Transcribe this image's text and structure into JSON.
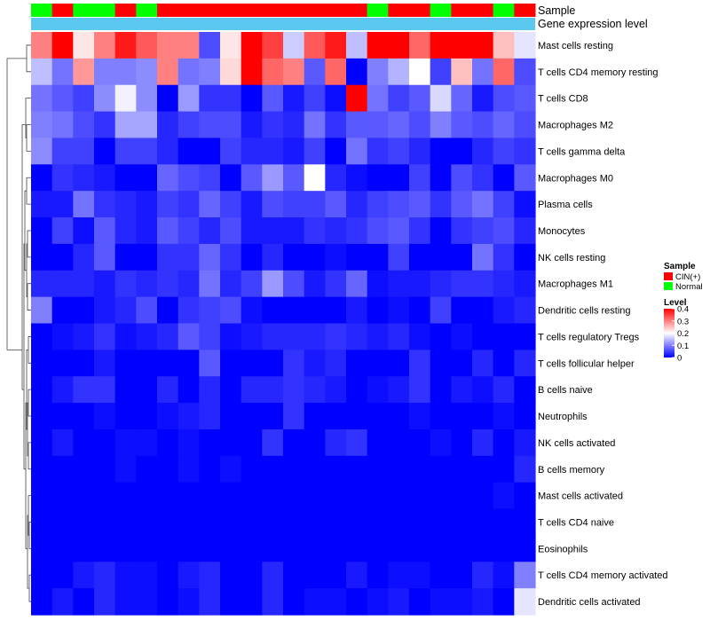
{
  "chart_data": {
    "type": "heatmap",
    "title": "",
    "annotation_tracks": [
      "Sample",
      "Gene expression level"
    ],
    "rows": [
      "Mast cells resting",
      "T cells CD4 memory resting",
      "T cells CD8",
      "Macrophages M2",
      "T cells gamma delta",
      "Macrophages M0",
      "Plasma cells",
      "Monocytes",
      "NK cells resting",
      "Macrophages M1",
      "Dendritic cells resting",
      "T cells regulatory  Tregs",
      "T cells follicular helper",
      "B cells naive",
      "Neutrophils",
      "NK cells activated",
      "B cells memory",
      "Mast cells activated",
      "T cells CD4 naive",
      "Eosinophils",
      "T cells CD4 memory activated",
      "Dendritic cells activated"
    ],
    "samples": [
      "Normal",
      "CIN(+)",
      "Normal",
      "Normal",
      "CIN(+)",
      "Normal",
      "CIN(+)",
      "CIN(+)",
      "CIN(+)",
      "CIN(+)",
      "CIN(+)",
      "CIN(+)",
      "CIN(+)",
      "CIN(+)",
      "CIN(+)",
      "CIN(+)",
      "Normal",
      "CIN(+)",
      "CIN(+)",
      "Normal",
      "CIN(+)",
      "CIN(+)",
      "Normal",
      "CIN(+)"
    ],
    "values": [
      [
        0.3,
        0.4,
        0.22,
        0.3,
        0.38,
        0.33,
        0.3,
        0.3,
        0.06,
        0.22,
        0.4,
        0.35,
        0.16,
        0.33,
        0.38,
        0.15,
        0.4,
        0.4,
        0.32,
        0.4,
        0.4,
        0.4,
        0.25,
        0.18
      ],
      [
        0.15,
        0.09,
        0.28,
        0.1,
        0.1,
        0.11,
        0.3,
        0.09,
        0.1,
        0.23,
        0.4,
        0.32,
        0.3,
        0.07,
        0.32,
        0.0,
        0.1,
        0.14,
        0.2,
        0.05,
        0.25,
        0.09,
        0.32,
        0.06
      ],
      [
        0.09,
        0.07,
        0.05,
        0.11,
        0.19,
        0.11,
        0.0,
        0.12,
        0.04,
        0.04,
        0.0,
        0.07,
        0.02,
        0.05,
        0.01,
        0.4,
        0.09,
        0.05,
        0.07,
        0.17,
        0.08,
        0.02,
        0.06,
        0.07
      ],
      [
        0.1,
        0.09,
        0.06,
        0.04,
        0.13,
        0.13,
        0.03,
        0.05,
        0.06,
        0.06,
        0.02,
        0.04,
        0.03,
        0.09,
        0.04,
        0.07,
        0.07,
        0.08,
        0.06,
        0.1,
        0.07,
        0.06,
        0.08,
        0.06
      ],
      [
        0.11,
        0.05,
        0.05,
        0.0,
        0.05,
        0.05,
        0.03,
        0.0,
        0.0,
        0.05,
        0.03,
        0.03,
        0.02,
        0.05,
        0.0,
        0.09,
        0.04,
        0.05,
        0.03,
        0.0,
        0.0,
        0.03,
        0.05,
        0.04
      ],
      [
        0.0,
        0.04,
        0.03,
        0.02,
        0.0,
        0.0,
        0.08,
        0.06,
        0.05,
        0.0,
        0.07,
        0.12,
        0.07,
        0.2,
        0.03,
        0.01,
        0.0,
        0.0,
        0.05,
        0.0,
        0.06,
        0.04,
        0.0,
        0.07
      ],
      [
        0.02,
        0.02,
        0.09,
        0.04,
        0.03,
        0.02,
        0.05,
        0.04,
        0.08,
        0.05,
        0.02,
        0.06,
        0.05,
        0.05,
        0.07,
        0.03,
        0.05,
        0.06,
        0.07,
        0.04,
        0.07,
        0.09,
        0.05,
        0.01
      ],
      [
        0.0,
        0.05,
        0.01,
        0.07,
        0.03,
        0.02,
        0.07,
        0.05,
        0.03,
        0.06,
        0.02,
        0.02,
        0.02,
        0.04,
        0.03,
        0.04,
        0.06,
        0.07,
        0.04,
        0.0,
        0.04,
        0.05,
        0.06,
        0.03
      ],
      [
        0.0,
        0.0,
        0.03,
        0.07,
        0.0,
        0.0,
        0.04,
        0.04,
        0.08,
        0.04,
        0.0,
        0.03,
        0.0,
        0.0,
        0.01,
        0.0,
        0.0,
        0.05,
        0.0,
        0.0,
        0.0,
        0.09,
        0.04,
        0.0
      ],
      [
        0.03,
        0.03,
        0.03,
        0.02,
        0.04,
        0.03,
        0.04,
        0.03,
        0.09,
        0.03,
        0.05,
        0.12,
        0.06,
        0.02,
        0.04,
        0.08,
        0.01,
        0.02,
        0.02,
        0.03,
        0.04,
        0.04,
        0.03,
        0.02
      ],
      [
        0.1,
        0.0,
        0.0,
        0.02,
        0.03,
        0.06,
        0.0,
        0.04,
        0.05,
        0.06,
        0.01,
        0.0,
        0.0,
        0.0,
        0.0,
        0.02,
        0.0,
        0.01,
        0.0,
        0.05,
        0.0,
        0.0,
        0.02,
        0.03
      ],
      [
        0.0,
        0.01,
        0.02,
        0.04,
        0.01,
        0.02,
        0.03,
        0.07,
        0.05,
        0.01,
        0.02,
        0.03,
        0.03,
        0.03,
        0.04,
        0.03,
        0.02,
        0.03,
        0.01,
        0.0,
        0.01,
        0.0,
        0.0,
        0.0
      ],
      [
        0.0,
        0.0,
        0.0,
        0.02,
        0.0,
        0.0,
        0.0,
        0.0,
        0.07,
        0.0,
        0.0,
        0.0,
        0.04,
        0.02,
        0.03,
        0.0,
        0.0,
        0.0,
        0.04,
        0.0,
        0.0,
        0.03,
        0.0,
        0.03
      ],
      [
        0.0,
        0.02,
        0.04,
        0.04,
        0.0,
        0.0,
        0.03,
        0.0,
        0.03,
        0.0,
        0.03,
        0.03,
        0.04,
        0.03,
        0.02,
        0.0,
        0.01,
        0.02,
        0.04,
        0.0,
        0.02,
        0.01,
        0.03,
        0.0
      ],
      [
        0.0,
        0.0,
        0.0,
        0.01,
        0.0,
        0.0,
        0.01,
        0.02,
        0.03,
        0.0,
        0.0,
        0.0,
        0.04,
        0.0,
        0.0,
        0.0,
        0.0,
        0.0,
        0.01,
        0.0,
        0.0,
        0.0,
        0.01,
        0.0
      ],
      [
        0.0,
        0.02,
        0.0,
        0.0,
        0.01,
        0.01,
        0.0,
        0.01,
        0.0,
        0.0,
        0.0,
        0.04,
        0.0,
        0.0,
        0.03,
        0.04,
        0.0,
        0.0,
        0.0,
        0.01,
        0.0,
        0.03,
        0.0,
        0.02
      ],
      [
        0.0,
        0.0,
        0.0,
        0.0,
        0.01,
        0.0,
        0.0,
        0.01,
        0.0,
        0.01,
        0.0,
        0.0,
        0.0,
        0.0,
        0.0,
        0.0,
        0.0,
        0.0,
        0.0,
        0.0,
        0.0,
        0.0,
        0.0,
        0.03
      ],
      [
        0.0,
        0.0,
        0.0,
        0.0,
        0.0,
        0.0,
        0.0,
        0.0,
        0.0,
        0.0,
        0.0,
        0.0,
        0.0,
        0.0,
        0.0,
        0.0,
        0.0,
        0.0,
        0.0,
        0.0,
        0.0,
        0.0,
        0.01,
        0.0
      ],
      [
        0.0,
        0.0,
        0.0,
        0.0,
        0.0,
        0.0,
        0.0,
        0.0,
        0.0,
        0.0,
        0.0,
        0.0,
        0.0,
        0.0,
        0.0,
        0.0,
        0.0,
        0.0,
        0.0,
        0.0,
        0.0,
        0.0,
        0.0,
        0.0
      ],
      [
        0.0,
        0.0,
        0.0,
        0.0,
        0.0,
        0.0,
        0.0,
        0.0,
        0.0,
        0.0,
        0.0,
        0.0,
        0.0,
        0.0,
        0.0,
        0.0,
        0.0,
        0.0,
        0.0,
        0.0,
        0.0,
        0.0,
        0.0,
        0.0
      ],
      [
        0.0,
        0.0,
        0.02,
        0.03,
        0.01,
        0.01,
        0.0,
        0.02,
        0.03,
        0.0,
        0.0,
        0.03,
        0.0,
        0.0,
        0.0,
        0.02,
        0.0,
        0.01,
        0.01,
        0.0,
        0.0,
        0.03,
        0.01,
        0.1
      ],
      [
        0.0,
        0.02,
        0.0,
        0.03,
        0.01,
        0.01,
        0.0,
        0.01,
        0.03,
        0.0,
        0.0,
        0.03,
        0.0,
        0.01,
        0.01,
        0.0,
        0.01,
        0.02,
        0.0,
        0.01,
        0.01,
        0.02,
        0.0,
        0.18
      ]
    ],
    "color_scale": {
      "domain": [
        0,
        0.2,
        0.4
      ],
      "colors": [
        "#0000ff",
        "#ffffff",
        "#ff0000"
      ]
    },
    "annotation_colors": {
      "Sample": {
        "CIN(+)": "#ff0000",
        "Normal": "#00ff00"
      },
      "Gene expression level": "#5bc8ef"
    },
    "legend": {
      "sample_title": "Sample",
      "sample_entries": [
        "CIN(+)",
        "Normal"
      ],
      "level_title": "Level",
      "level_ticks": [
        0.4,
        0.3,
        0.2,
        0.1,
        0
      ]
    },
    "dendrogram": "row clustering tree on the left side",
    "grid": false
  }
}
